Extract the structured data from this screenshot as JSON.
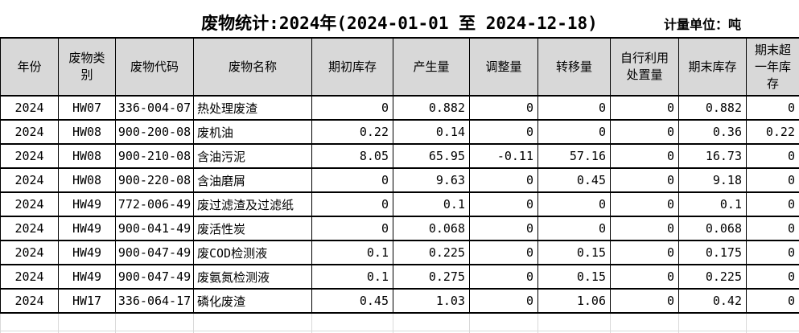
{
  "title": "废物统计:2024年(2024-01-01 至 2024-12-18)",
  "unit_label": "计量单位：吨",
  "table": {
    "columns": [
      "年份",
      "废物类别",
      "废物代码",
      "废物名称",
      "期初库存",
      "产生量",
      "调整量",
      "转移量",
      "自行利用处置量",
      "期末库存",
      "期末超一年库存"
    ],
    "rows": [
      [
        "2024",
        "HW07",
        "336-004-07",
        "热处理废渣",
        "0",
        "0.882",
        "0",
        "0",
        "0",
        "0.882",
        "0"
      ],
      [
        "2024",
        "HW08",
        "900-200-08",
        "废机油",
        "0.22",
        "0.14",
        "0",
        "0",
        "0",
        "0.36",
        "0.22"
      ],
      [
        "2024",
        "HW08",
        "900-210-08",
        "含油污泥",
        "8.05",
        "65.95",
        "-0.11",
        "57.16",
        "0",
        "16.73",
        "0"
      ],
      [
        "2024",
        "HW08",
        "900-220-08",
        "含油磨屑",
        "0",
        "9.63",
        "0",
        "0.45",
        "0",
        "9.18",
        "0"
      ],
      [
        "2024",
        "HW49",
        "772-006-49",
        "废过滤渣及过滤纸",
        "0",
        "0.1",
        "0",
        "0",
        "0",
        "0.1",
        "0"
      ],
      [
        "2024",
        "HW49",
        "900-041-49",
        "废活性炭",
        "0",
        "0.068",
        "0",
        "0",
        "0",
        "0.068",
        "0"
      ],
      [
        "2024",
        "HW49",
        "900-047-49",
        "废COD检测液",
        "0.1",
        "0.225",
        "0",
        "0.15",
        "0",
        "0.175",
        "0"
      ],
      [
        "2024",
        "HW49",
        "900-047-49",
        "废氨氮检测液",
        "0.1",
        "0.275",
        "0",
        "0.15",
        "0",
        "0.225",
        "0"
      ],
      [
        "2024",
        "HW17",
        "336-064-17",
        "磷化废渣",
        "0.45",
        "1.03",
        "0",
        "1.06",
        "0",
        "0.42",
        "0"
      ]
    ]
  },
  "colors": {
    "page_bg": "#ffffff",
    "text": "#000000",
    "header_bg": "#d8d8d8",
    "border": "#000000",
    "faint_grid": "#d9d9d9"
  }
}
